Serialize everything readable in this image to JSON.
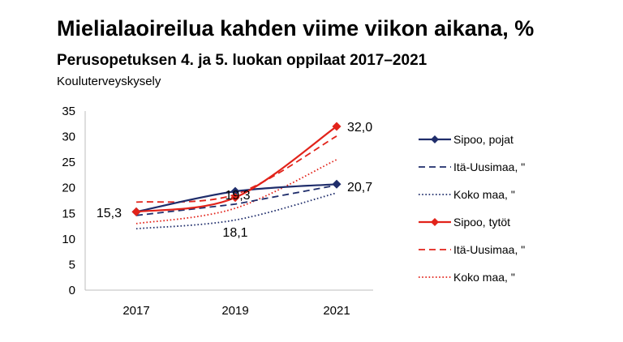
{
  "chart_data": {
    "type": "line",
    "title": "Mielialaoireilua kahden viime viikon aikana, %",
    "subtitle": "Perusopetuksen 4. ja 5. luokan oppilaat 2017–2021",
    "source": "Kouluterveyskysely",
    "categories": [
      "2017",
      "2019",
      "2021"
    ],
    "ylim": [
      0,
      35
    ],
    "yticks": [
      "0",
      "5",
      "10",
      "15",
      "20",
      "25",
      "30",
      "35"
    ],
    "legend_position": "right",
    "series": [
      {
        "name": "Sipoo, pojat",
        "values": [
          15.3,
          19.3,
          20.7
        ],
        "color": "#1f2d6b",
        "style": "solid",
        "marker": "diamond",
        "smooth": true
      },
      {
        "name": "Itä-Uusimaa, \"",
        "values": [
          14.6,
          16.8,
          20.5
        ],
        "color": "#1f2d6b",
        "style": "dashed",
        "marker": "none",
        "smooth": false
      },
      {
        "name": "Koko maa, \"",
        "values": [
          12.0,
          13.7,
          19.0
        ],
        "color": "#1f2d6b",
        "style": "dotted",
        "marker": "none",
        "smooth": true
      },
      {
        "name": "Sipoo, tytöt",
        "values": [
          15.3,
          18.1,
          32.0
        ],
        "color": "#e2231a",
        "style": "solid",
        "marker": "diamond",
        "smooth": true
      },
      {
        "name": "Itä-Uusimaa, \"",
        "values": [
          17.2,
          18.7,
          30.1
        ],
        "color": "#e2231a",
        "style": "dashed",
        "marker": "none",
        "smooth": true
      },
      {
        "name": "Koko maa, \"",
        "values": [
          13.0,
          16.0,
          25.5
        ],
        "color": "#e2231a",
        "style": "dotted",
        "marker": "none",
        "smooth": true
      }
    ],
    "data_labels": [
      "15,3",
      "19,3",
      "18,1",
      "32,0",
      "20,7"
    ]
  }
}
